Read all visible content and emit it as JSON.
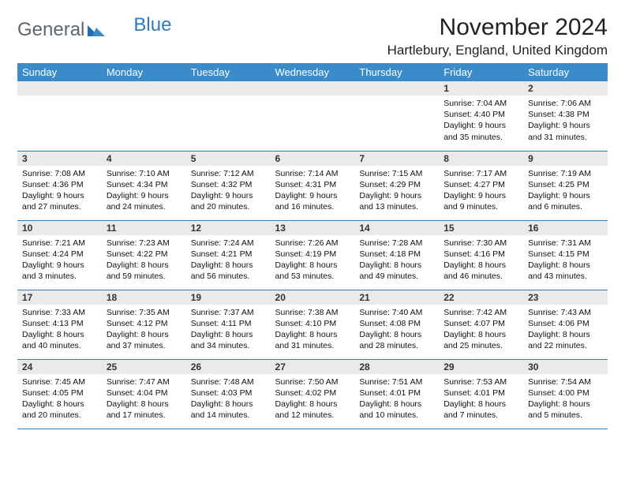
{
  "logo": {
    "text1": "General",
    "text2": "Blue"
  },
  "title": "November 2024",
  "location": "Hartlebury, England, United Kingdom",
  "colors": {
    "header_bg": "#3b8bc9",
    "header_text": "#ffffff",
    "daynum_bg": "#e9eaeb",
    "row_border": "#2f7ac0",
    "logo_gray": "#5b6770",
    "logo_blue": "#2f7ac0"
  },
  "day_headers": [
    "Sunday",
    "Monday",
    "Tuesday",
    "Wednesday",
    "Thursday",
    "Friday",
    "Saturday"
  ],
  "weeks": [
    [
      null,
      null,
      null,
      null,
      null,
      {
        "n": "1",
        "sunrise": "7:04 AM",
        "sunset": "4:40 PM",
        "daylight": "9 hours and 35 minutes."
      },
      {
        "n": "2",
        "sunrise": "7:06 AM",
        "sunset": "4:38 PM",
        "daylight": "9 hours and 31 minutes."
      }
    ],
    [
      {
        "n": "3",
        "sunrise": "7:08 AM",
        "sunset": "4:36 PM",
        "daylight": "9 hours and 27 minutes."
      },
      {
        "n": "4",
        "sunrise": "7:10 AM",
        "sunset": "4:34 PM",
        "daylight": "9 hours and 24 minutes."
      },
      {
        "n": "5",
        "sunrise": "7:12 AM",
        "sunset": "4:32 PM",
        "daylight": "9 hours and 20 minutes."
      },
      {
        "n": "6",
        "sunrise": "7:14 AM",
        "sunset": "4:31 PM",
        "daylight": "9 hours and 16 minutes."
      },
      {
        "n": "7",
        "sunrise": "7:15 AM",
        "sunset": "4:29 PM",
        "daylight": "9 hours and 13 minutes."
      },
      {
        "n": "8",
        "sunrise": "7:17 AM",
        "sunset": "4:27 PM",
        "daylight": "9 hours and 9 minutes."
      },
      {
        "n": "9",
        "sunrise": "7:19 AM",
        "sunset": "4:25 PM",
        "daylight": "9 hours and 6 minutes."
      }
    ],
    [
      {
        "n": "10",
        "sunrise": "7:21 AM",
        "sunset": "4:24 PM",
        "daylight": "9 hours and 3 minutes."
      },
      {
        "n": "11",
        "sunrise": "7:23 AM",
        "sunset": "4:22 PM",
        "daylight": "8 hours and 59 minutes."
      },
      {
        "n": "12",
        "sunrise": "7:24 AM",
        "sunset": "4:21 PM",
        "daylight": "8 hours and 56 minutes."
      },
      {
        "n": "13",
        "sunrise": "7:26 AM",
        "sunset": "4:19 PM",
        "daylight": "8 hours and 53 minutes."
      },
      {
        "n": "14",
        "sunrise": "7:28 AM",
        "sunset": "4:18 PM",
        "daylight": "8 hours and 49 minutes."
      },
      {
        "n": "15",
        "sunrise": "7:30 AM",
        "sunset": "4:16 PM",
        "daylight": "8 hours and 46 minutes."
      },
      {
        "n": "16",
        "sunrise": "7:31 AM",
        "sunset": "4:15 PM",
        "daylight": "8 hours and 43 minutes."
      }
    ],
    [
      {
        "n": "17",
        "sunrise": "7:33 AM",
        "sunset": "4:13 PM",
        "daylight": "8 hours and 40 minutes."
      },
      {
        "n": "18",
        "sunrise": "7:35 AM",
        "sunset": "4:12 PM",
        "daylight": "8 hours and 37 minutes."
      },
      {
        "n": "19",
        "sunrise": "7:37 AM",
        "sunset": "4:11 PM",
        "daylight": "8 hours and 34 minutes."
      },
      {
        "n": "20",
        "sunrise": "7:38 AM",
        "sunset": "4:10 PM",
        "daylight": "8 hours and 31 minutes."
      },
      {
        "n": "21",
        "sunrise": "7:40 AM",
        "sunset": "4:08 PM",
        "daylight": "8 hours and 28 minutes."
      },
      {
        "n": "22",
        "sunrise": "7:42 AM",
        "sunset": "4:07 PM",
        "daylight": "8 hours and 25 minutes."
      },
      {
        "n": "23",
        "sunrise": "7:43 AM",
        "sunset": "4:06 PM",
        "daylight": "8 hours and 22 minutes."
      }
    ],
    [
      {
        "n": "24",
        "sunrise": "7:45 AM",
        "sunset": "4:05 PM",
        "daylight": "8 hours and 20 minutes."
      },
      {
        "n": "25",
        "sunrise": "7:47 AM",
        "sunset": "4:04 PM",
        "daylight": "8 hours and 17 minutes."
      },
      {
        "n": "26",
        "sunrise": "7:48 AM",
        "sunset": "4:03 PM",
        "daylight": "8 hours and 14 minutes."
      },
      {
        "n": "27",
        "sunrise": "7:50 AM",
        "sunset": "4:02 PM",
        "daylight": "8 hours and 12 minutes."
      },
      {
        "n": "28",
        "sunrise": "7:51 AM",
        "sunset": "4:01 PM",
        "daylight": "8 hours and 10 minutes."
      },
      {
        "n": "29",
        "sunrise": "7:53 AM",
        "sunset": "4:01 PM",
        "daylight": "8 hours and 7 minutes."
      },
      {
        "n": "30",
        "sunrise": "7:54 AM",
        "sunset": "4:00 PM",
        "daylight": "8 hours and 5 minutes."
      }
    ]
  ],
  "labels": {
    "sunrise": "Sunrise: ",
    "sunset": "Sunset: ",
    "daylight": "Daylight: "
  }
}
